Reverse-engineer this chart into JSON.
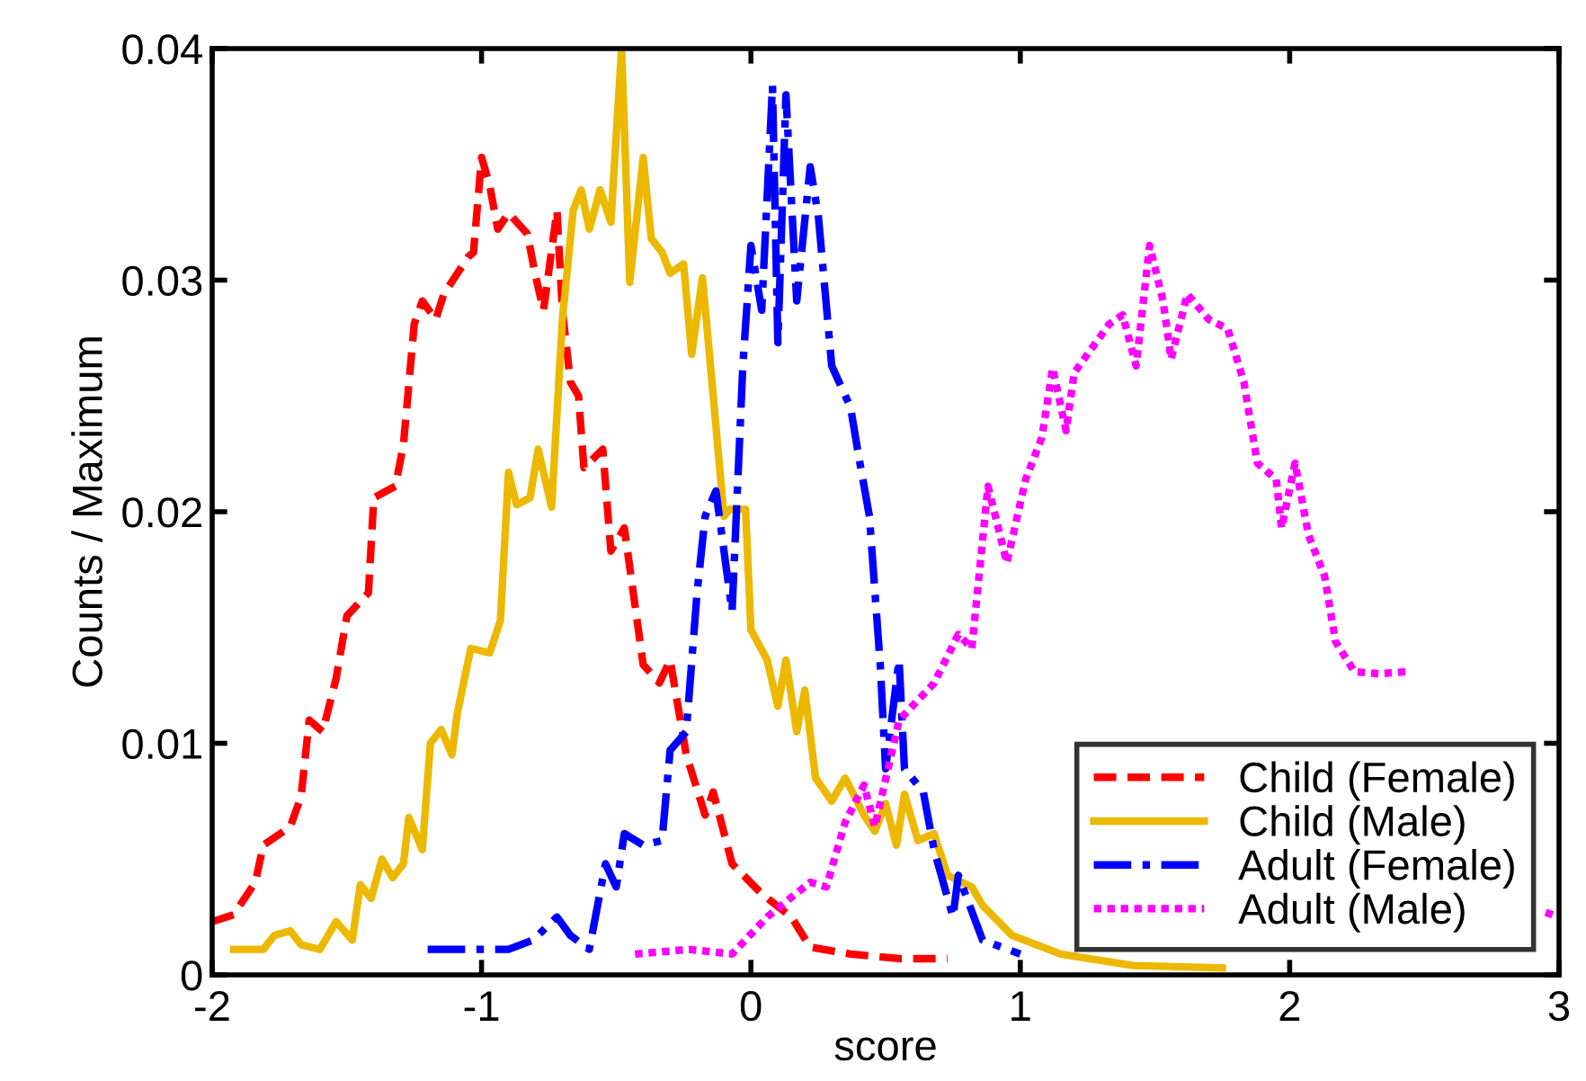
{
  "chart_data": {
    "type": "line",
    "xlabel": "score",
    "ylabel": "Counts / Maximum",
    "xlim": [
      -2,
      3
    ],
    "ylim": [
      0,
      0.04
    ],
    "xticks": [
      -2,
      -1,
      0,
      1,
      2,
      3
    ],
    "yticks": [
      0,
      0.01,
      0.02,
      0.03,
      0.04
    ],
    "grid": false,
    "legend": "bottom right",
    "marker": "none",
    "series": [
      {
        "name": "Child (Female)",
        "color": "#ff0000",
        "line_style": "dashed",
        "x": [
          -2.0,
          -1.92,
          -1.84,
          -1.81,
          -1.71,
          -1.67,
          -1.64,
          -1.59,
          -1.54,
          -1.5,
          -1.42,
          -1.4,
          -1.32,
          -1.29,
          -1.25,
          -1.22,
          -1.17,
          -1.14,
          -1.05,
          -1.03,
          -1.0,
          -0.97,
          -0.94,
          -0.9,
          -0.83,
          -0.8,
          -0.77,
          -0.72,
          -0.7,
          -0.67,
          -0.64,
          -0.62,
          -0.55,
          -0.52,
          -0.47,
          -0.4,
          -0.34,
          -0.3,
          -0.24,
          -0.17,
          -0.14,
          -0.07,
          0.04,
          0.15,
          0.22,
          0.37,
          0.55,
          0.73
        ],
        "values": [
          0.0023,
          0.0026,
          0.004,
          0.0056,
          0.0064,
          0.0077,
          0.011,
          0.0105,
          0.0128,
          0.0155,
          0.0165,
          0.0206,
          0.0211,
          0.0229,
          0.0281,
          0.0291,
          0.0283,
          0.0294,
          0.031,
          0.0312,
          0.0353,
          0.0341,
          0.0322,
          0.0329,
          0.032,
          0.0302,
          0.0287,
          0.033,
          0.0287,
          0.0256,
          0.025,
          0.0219,
          0.0227,
          0.0183,
          0.0193,
          0.0134,
          0.0126,
          0.0136,
          0.0095,
          0.0069,
          0.0079,
          0.0048,
          0.0035,
          0.0025,
          0.0012,
          0.0009,
          0.0007,
          0.0007
        ]
      },
      {
        "name": "Child (Male)",
        "color": "#ecb800",
        "line_style": "solid",
        "x": [
          -1.92,
          -1.81,
          -1.77,
          -1.71,
          -1.67,
          -1.6,
          -1.54,
          -1.48,
          -1.45,
          -1.41,
          -1.37,
          -1.33,
          -1.29,
          -1.27,
          -1.22,
          -1.19,
          -1.15,
          -1.11,
          -1.09,
          -1.04,
          -0.97,
          -0.93,
          -0.9,
          -0.87,
          -0.82,
          -0.79,
          -0.74,
          -0.7,
          -0.66,
          -0.63,
          -0.6,
          -0.56,
          -0.52,
          -0.48,
          -0.45,
          -0.4,
          -0.37,
          -0.33,
          -0.3,
          -0.25,
          -0.22,
          -0.18,
          -0.14,
          -0.1,
          -0.08,
          -0.02,
          0.0,
          0.06,
          0.1,
          0.13,
          0.17,
          0.2,
          0.24,
          0.3,
          0.35,
          0.42,
          0.46,
          0.5,
          0.54,
          0.57,
          0.62,
          0.68,
          0.73,
          0.82,
          0.86,
          0.97,
          1.15,
          1.42,
          1.75
        ],
        "values": [
          0.0011,
          0.0011,
          0.0017,
          0.0019,
          0.0013,
          0.0011,
          0.0023,
          0.0015,
          0.0039,
          0.0033,
          0.005,
          0.0042,
          0.0048,
          0.0068,
          0.0054,
          0.01,
          0.0106,
          0.0095,
          0.0113,
          0.0141,
          0.0139,
          0.0153,
          0.0217,
          0.0203,
          0.0206,
          0.0227,
          0.0202,
          0.0283,
          0.033,
          0.0339,
          0.0322,
          0.0339,
          0.0325,
          0.04,
          0.0299,
          0.0353,
          0.0318,
          0.0312,
          0.0303,
          0.0307,
          0.0268,
          0.0301,
          0.025,
          0.0198,
          0.0201,
          0.0201,
          0.0149,
          0.0136,
          0.0116,
          0.0136,
          0.0105,
          0.0123,
          0.0085,
          0.0075,
          0.0085,
          0.0069,
          0.0062,
          0.0074,
          0.0056,
          0.0078,
          0.0058,
          0.0061,
          0.0043,
          0.0038,
          0.003,
          0.0017,
          0.0009,
          0.0004,
          0.0003
        ]
      },
      {
        "name": "Adult (Female)",
        "color": "#0000ff",
        "line_style": "dashdot",
        "x": [
          -1.2,
          -0.9,
          -0.81,
          -0.72,
          -0.67,
          -0.6,
          -0.54,
          -0.5,
          -0.47,
          -0.4,
          -0.33,
          -0.3,
          -0.24,
          -0.2,
          -0.17,
          -0.13,
          -0.07,
          -0.03,
          0.0,
          0.04,
          0.08,
          0.1,
          0.13,
          0.17,
          0.22,
          0.25,
          0.3,
          0.37,
          0.4,
          0.44,
          0.48,
          0.5,
          0.55,
          0.57,
          0.64,
          0.68,
          0.75,
          0.77,
          0.86,
          1.0
        ],
        "values": [
          0.0011,
          0.0011,
          0.0015,
          0.0025,
          0.0017,
          0.0011,
          0.0048,
          0.0038,
          0.0061,
          0.0056,
          0.0058,
          0.0097,
          0.0105,
          0.0165,
          0.0198,
          0.0209,
          0.0157,
          0.0263,
          0.0315,
          0.0287,
          0.0384,
          0.0273,
          0.038,
          0.0291,
          0.0349,
          0.0328,
          0.0263,
          0.0245,
          0.0224,
          0.0198,
          0.0134,
          0.0089,
          0.0136,
          0.0089,
          0.0079,
          0.0054,
          0.0025,
          0.0043,
          0.0015,
          0.0009
        ]
      },
      {
        "name": "Adult (Male)",
        "color": "#ff00ff",
        "line_style": "dotted",
        "x": [
          -0.43,
          -0.23,
          -0.07,
          0.06,
          0.22,
          0.28,
          0.35,
          0.42,
          0.46,
          0.55,
          0.68,
          0.77,
          0.82,
          0.88,
          0.95,
          1.02,
          1.08,
          1.12,
          1.17,
          1.2,
          1.33,
          1.38,
          1.43,
          1.48,
          1.53,
          1.56,
          1.62,
          1.7,
          1.77,
          1.83,
          1.88,
          1.95,
          1.97,
          2.02,
          2.07,
          2.13,
          2.17,
          2.24,
          2.33,
          2.44,
          2.6,
          2.95,
          3.0
        ],
        "values": [
          0.0009,
          0.0011,
          0.0009,
          0.0025,
          0.004,
          0.0038,
          0.0066,
          0.0082,
          0.0064,
          0.011,
          0.0126,
          0.0147,
          0.0141,
          0.0211,
          0.0178,
          0.0214,
          0.0232,
          0.0262,
          0.0235,
          0.026,
          0.0281,
          0.0285,
          0.0263,
          0.0315,
          0.0291,
          0.0266,
          0.0294,
          0.0283,
          0.0279,
          0.0256,
          0.0221,
          0.0214,
          0.0193,
          0.0221,
          0.019,
          0.0172,
          0.0144,
          0.0131,
          0.013,
          0.0131,
          null,
          0.0027,
          0.0025
        ]
      }
    ]
  }
}
